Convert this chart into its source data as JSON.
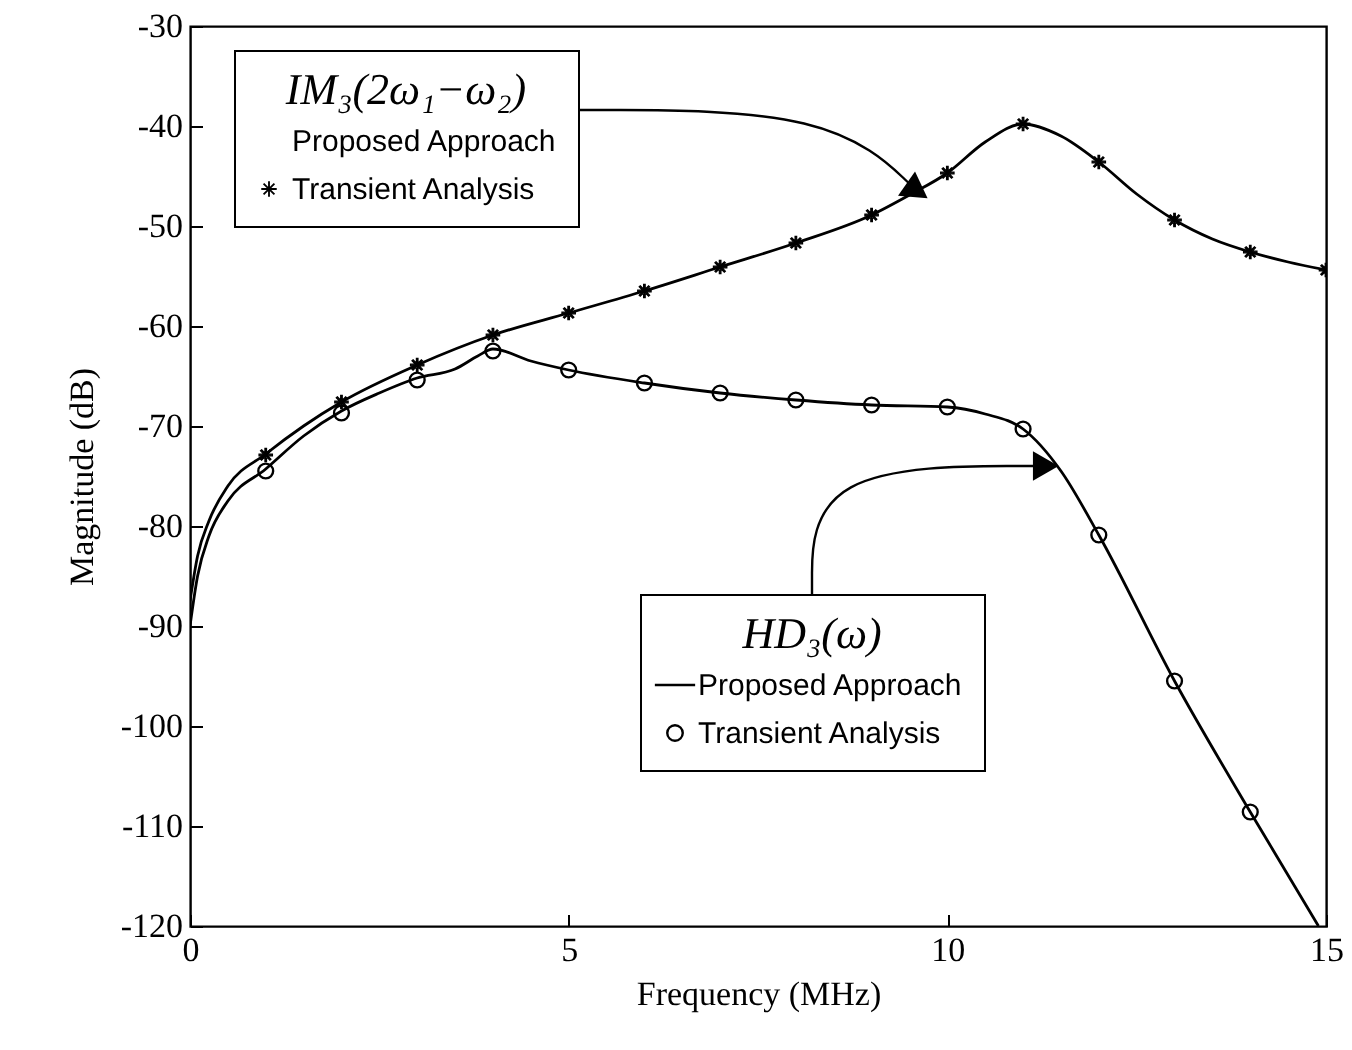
{
  "chart_data": {
    "type": "line",
    "xlabel": "Frequency (MHz)",
    "ylabel": "Magnitude (dB)",
    "xlim": [
      0,
      15
    ],
    "xticks": [
      0,
      5,
      10,
      15
    ],
    "ylim": [
      -120,
      -30
    ],
    "yticks": [
      -120,
      -110,
      -100,
      -90,
      -80,
      -70,
      -60,
      -50,
      -40,
      -30
    ],
    "grid": false,
    "legend": "top left",
    "annotations": [
      {
        "text": "IM₃(2ω₁−ω₂)",
        "x": 9.6,
        "y": -46.5
      },
      {
        "text": "HD₃(ω)",
        "x": 11.3,
        "y": -74
      }
    ],
    "series": [
      {
        "name": "Proposed Approach",
        "type": "line",
        "color": "#000000",
        "marker": "none",
        "x": [
          0,
          0.1,
          0.25,
          0.5,
          1,
          1.5,
          2,
          3,
          4,
          5,
          6,
          7,
          8,
          9,
          9.5,
          10,
          10.5,
          11,
          11.5,
          12,
          12.5,
          13,
          13.5,
          14,
          14.5,
          15
        ],
        "values": [
          -87.5,
          -83,
          -79.5,
          -76,
          -72.8,
          -70,
          -67.6,
          -63.9,
          -60.9,
          -58.7,
          -56.5,
          -54.1,
          -51.7,
          -48.9,
          -46.9,
          -44.7,
          -41.6,
          -39.8,
          -41,
          -43.6,
          -46.8,
          -49.4,
          -51.3,
          -52.6,
          -53.6,
          -54.4
        ]
      },
      {
        "name": "Transient Analysis",
        "type": "scatter",
        "color": "#000000",
        "marker": "star",
        "x": [
          1,
          2,
          3,
          4,
          5,
          6,
          7,
          8,
          9,
          10,
          11,
          12,
          13,
          14,
          15
        ],
        "values": [
          -72.9,
          -67.6,
          -63.9,
          -60.9,
          -58.7,
          -56.5,
          -54.1,
          -51.7,
          -48.9,
          -44.7,
          -39.8,
          -43.6,
          -49.4,
          -52.6,
          -54.4
        ]
      },
      {
        "name": "Proposed Approach",
        "type": "line",
        "color": "#000000",
        "marker": "none",
        "x": [
          0,
          0.1,
          0.25,
          0.5,
          1,
          1.5,
          2,
          2.5,
          3,
          3.5,
          3.8,
          4,
          4.5,
          5,
          6,
          7,
          8,
          9,
          10,
          10.5,
          11,
          11.5,
          12,
          13,
          14,
          14.9
        ],
        "values": [
          -90,
          -85,
          -81,
          -77.5,
          -74.3,
          -71,
          -68.5,
          -66.7,
          -65.2,
          -64.3,
          -63,
          -62.3,
          -63.5,
          -64.4,
          -65.7,
          -66.7,
          -67.4,
          -67.9,
          -68.1,
          -68.8,
          -70.3,
          -74.5,
          -80.9,
          -95.5,
          -108.6,
          -120
        ]
      },
      {
        "name": "Transient Analysis",
        "type": "scatter",
        "color": "#000000",
        "marker": "circle",
        "x": [
          1,
          2,
          3,
          4,
          5,
          6,
          7,
          8,
          9,
          10,
          11,
          12,
          13,
          14
        ],
        "values": [
          -74.5,
          -68.7,
          -65.4,
          -62.5,
          -64.4,
          -65.7,
          -66.7,
          -67.4,
          -67.9,
          -68.1,
          -70.3,
          -80.9,
          -95.5,
          -108.6
        ]
      }
    ]
  }
}
